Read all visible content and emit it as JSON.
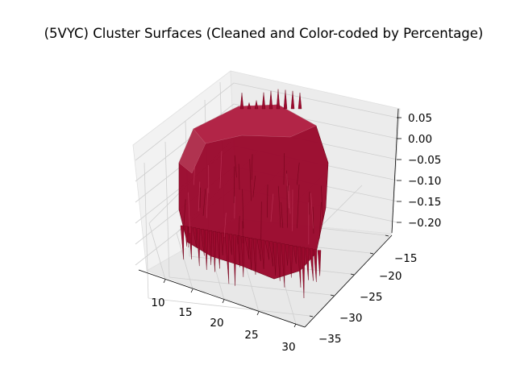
{
  "chart_data": {
    "type": "surface3d",
    "title": "(5VYC) Cluster Surfaces (Cleaned and Color-coded by Percentage)",
    "xlabel": "",
    "ylabel": "",
    "zlabel": "",
    "x_ticks": [
      10,
      15,
      20,
      25,
      30
    ],
    "y_ticks": [
      -15,
      -20,
      -25,
      -30,
      -35
    ],
    "z_ticks": [
      "0.05",
      "0.00",
      "−0.05",
      "−0.10",
      "−0.15",
      "−0.20"
    ],
    "xlim": [
      7,
      31
    ],
    "ylim": [
      -37,
      -13
    ],
    "zlim": [
      -0.23,
      0.06
    ],
    "grid": true,
    "surface_color": "#9b0a2e",
    "surface_edge_color": "#6d0016",
    "surface_approx": {
      "x_range": [
        10,
        30
      ],
      "y_range": [
        -35,
        -15
      ],
      "z_top": 0.03,
      "z_bottom": -0.21
    }
  }
}
